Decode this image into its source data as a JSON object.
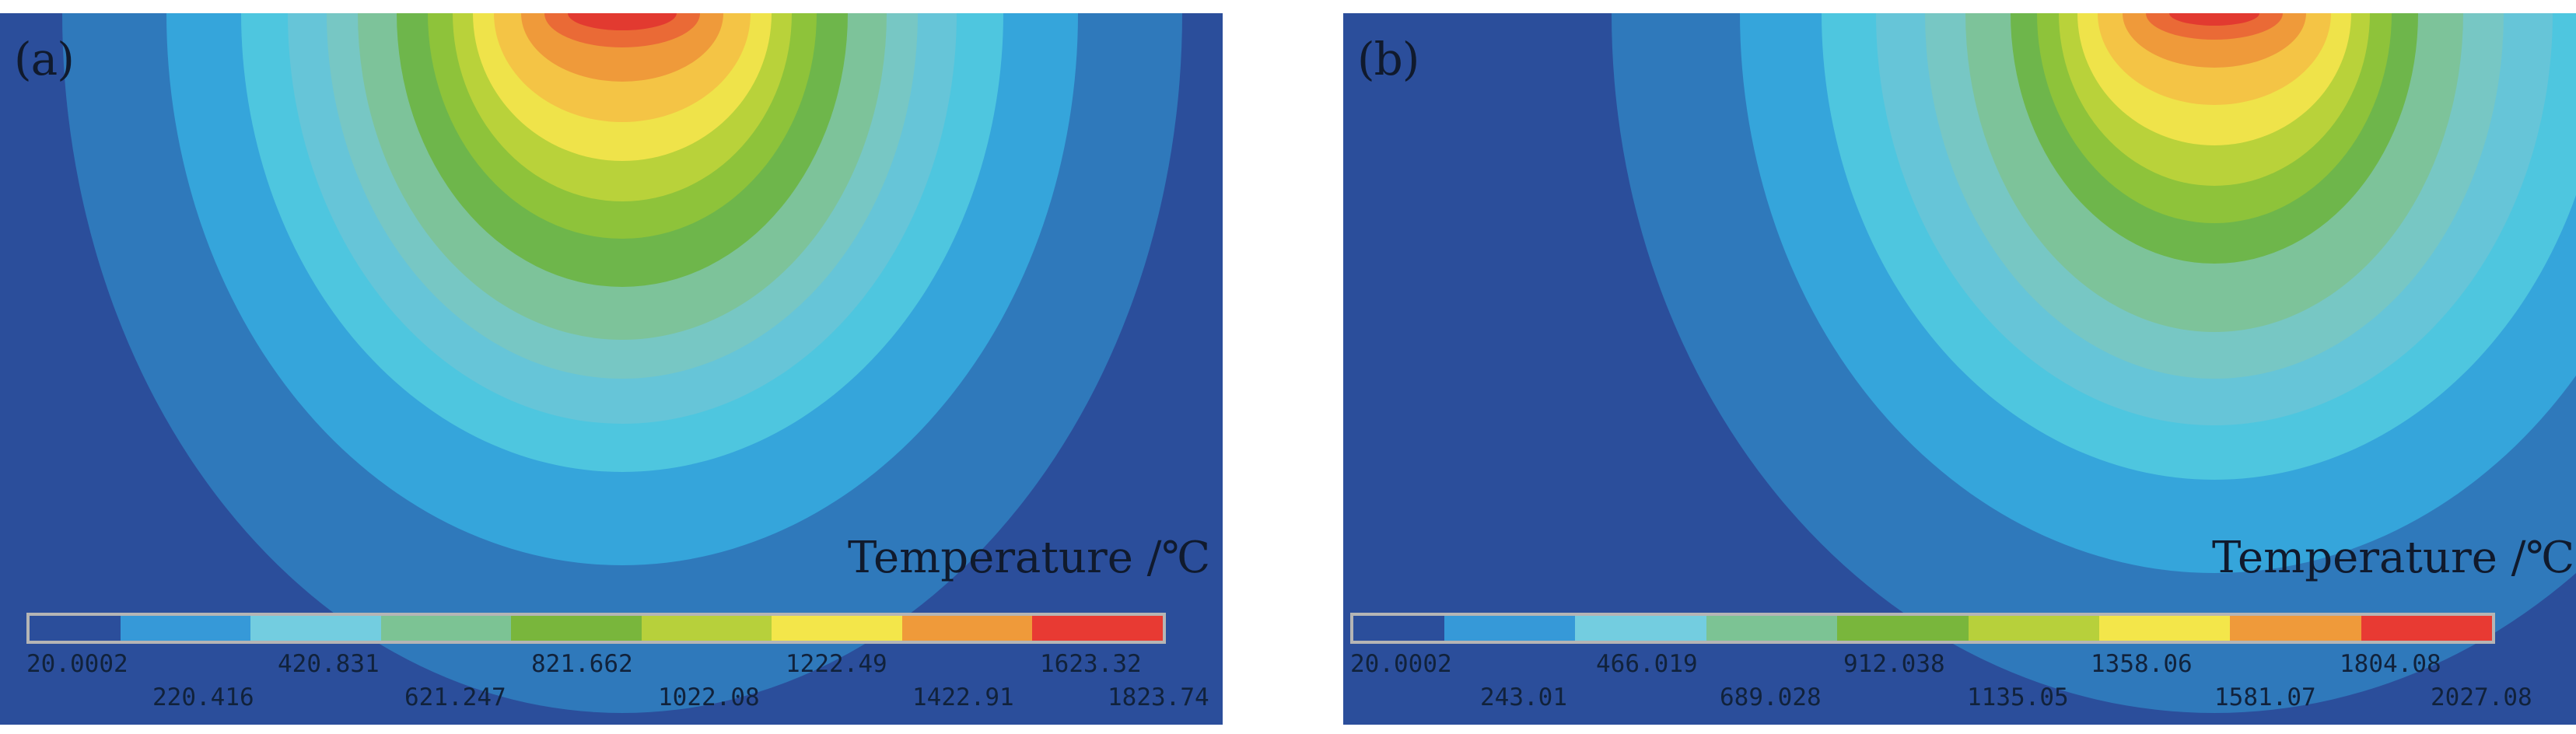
{
  "panels": [
    {
      "label": "(a)",
      "unit_label": "Temperature /℃",
      "legend_colors": [
        "#2b4e9b",
        "#3699d8",
        "#73cde0",
        "#7cc394",
        "#79b63c",
        "#b7d03b",
        "#f3e64a",
        "#ef9a3a",
        "#e83a33"
      ],
      "ticks_top": [
        "20.0002",
        "420.831",
        "821.662",
        "1222.49",
        "1623.32"
      ],
      "ticks_bottom": [
        "220.416",
        "621.247",
        "1022.08",
        "1422.91",
        "1823.74"
      ],
      "top_border": true
    },
    {
      "label": "(b)",
      "unit_label": "Temperature /℃",
      "legend_colors": [
        "#2b4e9b",
        "#3699d8",
        "#73cde0",
        "#7cc394",
        "#79b63c",
        "#b7d03b",
        "#f3e64a",
        "#ef9a3a",
        "#e83a33"
      ],
      "ticks_top": [
        "20.0002",
        "466.019",
        "912.038",
        "1358.06",
        "1804.08"
      ],
      "ticks_bottom": [
        "243.01",
        "689.028",
        "1135.05",
        "1581.07",
        "2027.08"
      ],
      "top_border": false
    }
  ]
}
